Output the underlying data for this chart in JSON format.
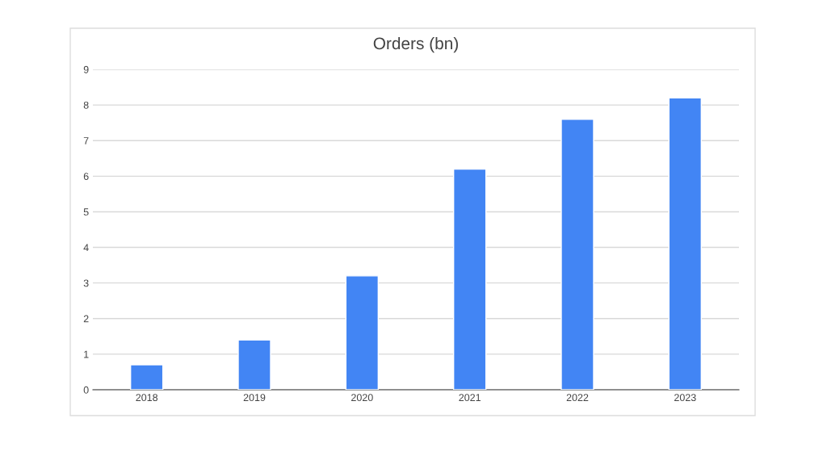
{
  "chart_data": {
    "type": "bar",
    "title": "Orders (bn)",
    "categories": [
      "2018",
      "2019",
      "2020",
      "2021",
      "2022",
      "2023"
    ],
    "values": [
      0.7,
      1.4,
      3.2,
      6.2,
      7.6,
      8.2
    ],
    "color": "#4285f4",
    "ylim": [
      0,
      9
    ],
    "yticks": [
      0,
      1,
      2,
      3,
      4,
      5,
      6,
      7,
      8,
      9
    ],
    "grid": "y"
  }
}
